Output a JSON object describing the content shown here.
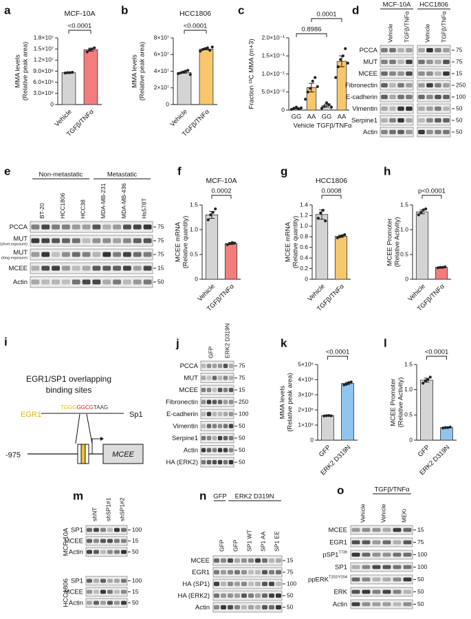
{
  "chart_data": [
    {
      "panel": "a",
      "type": "bar",
      "title": "MCF-10A",
      "ylabel": [
        "MMA levels",
        "(Relative peak area)"
      ],
      "categories": [
        "Vehicle",
        "TGFβ/TNFα"
      ],
      "values": [
        8600000,
        14800000
      ],
      "errors": [
        100000,
        400000
      ],
      "points": [
        [
          8500000,
          8600000,
          8600000,
          8700000
        ],
        [
          14200000,
          14700000,
          15000000,
          15300000
        ]
      ],
      "colors": [
        "#d4d4d4",
        "#f47c7c"
      ],
      "ylim": [
        0,
        18000000
      ],
      "yticks": [
        0,
        {
          "value": 3000000,
          "label": "3.0×10⁶"
        },
        {
          "value": 6000000,
          "label": "6.0×10⁶"
        },
        {
          "value": 9000000,
          "label": "9.0×10⁶"
        },
        {
          "value": 12000000,
          "label": "1.2×10⁷"
        },
        {
          "value": 15000000,
          "label": "1.5×10⁷"
        },
        {
          "value": 18000000,
          "label": "1.8×10⁷"
        }
      ],
      "annotations": [
        "<0.0001"
      ]
    },
    {
      "panel": "b",
      "type": "bar",
      "title": "HCC1806",
      "ylabel": [
        "MMA levels",
        "(Relative peak area)"
      ],
      "categories": [
        "Vehicle",
        "TGFβ/TNFα"
      ],
      "values": [
        38500000,
        66500000
      ],
      "errors": [
        1000000,
        900000
      ],
      "points": [
        [
          37000000,
          38000000,
          39000000,
          40000000,
          41000000,
          36000000
        ],
        [
          64000000,
          66000000,
          67000000,
          68000000,
          65000000,
          69000000
        ]
      ],
      "colors": [
        "#d4d4d4",
        "#f8c66b"
      ],
      "ylim": [
        0,
        80000000
      ],
      "yticks": [
        0,
        {
          "value": 20000000,
          "label": "2×10⁷"
        },
        {
          "value": 40000000,
          "label": "4×10⁷"
        },
        {
          "value": 60000000,
          "label": "6×10⁷"
        },
        {
          "value": 80000000,
          "label": "8×10⁷"
        }
      ],
      "annotations": [
        "<0.0001"
      ]
    },
    {
      "panel": "c",
      "type": "bar",
      "ylabel": [
        "Fraction ¹³C MMA (m+3)"
      ],
      "categories": [
        "GG",
        "AA",
        "GG",
        "AA"
      ],
      "groups": [
        "Vehicle",
        "TGFβ/TNFα"
      ],
      "values": [
        0.005,
        0.062,
        0.012,
        0.135
      ],
      "errors": [
        0.002,
        0.012,
        0.004,
        0.015
      ],
      "points": [
        [
          0.002,
          0.005,
          0.008,
          0.003,
          0.006
        ],
        [
          0.03,
          0.05,
          0.06,
          0.08,
          0.09,
          0.065
        ],
        [
          0.005,
          0.01,
          0.02,
          0.015,
          0.008
        ],
        [
          0.09,
          0.12,
          0.14,
          0.15,
          0.17,
          0.13
        ]
      ],
      "colors": [
        "#d4d4d4",
        "#f8c66b",
        "#d4d4d4",
        "#f8c66b"
      ],
      "ylim": [
        0,
        0.2
      ],
      "yticks": [
        0,
        {
          "value": 0.05,
          "label": "5.0×10⁻²"
        },
        {
          "value": 0.1,
          "label": "1.0×10⁻¹"
        },
        {
          "value": 0.15,
          "label": "1.5×10⁻¹"
        },
        {
          "value": 0.2,
          "label": "2.0×10⁻¹"
        }
      ],
      "annotations": [
        "0.8986",
        "0.0001"
      ]
    },
    {
      "panel": "f",
      "type": "bar",
      "title": "MCF-10A",
      "ylabel": [
        "MCEE mRNA",
        "(Relative quantity)"
      ],
      "categories": [
        "Vehicle",
        "TGFβ/TNFα"
      ],
      "values": [
        1.3,
        0.72
      ],
      "errors": [
        0.07,
        0.02
      ],
      "points": [
        [
          1.2,
          1.3,
          1.35,
          1.42
        ],
        [
          0.7,
          0.72,
          0.74,
          0.73
        ]
      ],
      "colors": [
        "#d4d4d4",
        "#f47c7c"
      ],
      "ylim": [
        0,
        1.5
      ],
      "yticks": [
        0,
        0.5,
        {
          "value": 1,
          "label": "1.0"
        },
        1.5
      ],
      "annotations": [
        "0.0002"
      ]
    },
    {
      "panel": "g",
      "type": "bar",
      "title": "HCC1806",
      "ylabel": [
        "MCEE mRNA",
        "(Relative quantity)"
      ],
      "categories": [
        "Vehicle",
        "TGFβ/TNFα"
      ],
      "values": [
        1.22,
        0.81
      ],
      "errors": [
        0.09,
        0.02
      ],
      "points": [
        [
          1.15,
          1.25,
          1.3,
          1.1
        ],
        [
          0.78,
          0.8,
          0.82,
          0.84
        ]
      ],
      "colors": [
        "#d4d4d4",
        "#f8c66b"
      ],
      "ylim": [
        0,
        1.4
      ],
      "yticks": [
        0,
        0.2,
        0.4,
        0.6,
        0.8,
        {
          "value": 1,
          "label": "1.0"
        },
        1.2,
        1.4
      ],
      "annotations": [
        "0.0008"
      ]
    },
    {
      "panel": "h",
      "type": "bar",
      "ylabel": [
        "MCEE Promoter",
        "(Relative Activity)"
      ],
      "categories": [
        "Vehicle",
        "TGFβ/TNFα"
      ],
      "values": [
        1.36,
        0.24
      ],
      "errors": [
        0.04,
        0.01
      ],
      "points": [
        [
          1.3,
          1.35,
          1.4,
          1.42
        ],
        [
          0.23,
          0.24,
          0.24,
          0.25
        ]
      ],
      "colors": [
        "#d4d4d4",
        "#f47c7c"
      ],
      "ylim": [
        0,
        1.5
      ],
      "yticks": [
        0,
        0.5,
        {
          "value": 1,
          "label": "1.0"
        },
        1.5
      ],
      "annotations": [
        "p<0.0001"
      ]
    },
    {
      "panel": "k",
      "type": "bar",
      "ylabel": [
        "MMA levels",
        "(Relative peak area)"
      ],
      "categories": [
        "GFP",
        "ERK2 D319N"
      ],
      "values": [
        1620000,
        3750000
      ],
      "errors": [
        20000,
        70000
      ],
      "points": [
        [
          1600000,
          1620000,
          1630000,
          1610000
        ],
        [
          3650000,
          3700000,
          3800000,
          3850000
        ]
      ],
      "colors": [
        "#d4d4d4",
        "#8fc4ec"
      ],
      "ylim": [
        0,
        5000000
      ],
      "yticks": [
        0,
        {
          "value": 1000000,
          "label": "1×10⁶"
        },
        {
          "value": 2000000,
          "label": "2×10⁶"
        },
        {
          "value": 3000000,
          "label": "3×10⁶"
        },
        {
          "value": 4000000,
          "label": "4×10⁶"
        },
        {
          "value": 5000000,
          "label": "5×10⁶"
        }
      ],
      "annotations": [
        "<0.0001"
      ]
    },
    {
      "panel": "l",
      "type": "bar",
      "ylabel": [
        "MCEE Promoter",
        "(Relative Activity)"
      ],
      "categories": [
        "GFP",
        "ERK2 D319N"
      ],
      "values": [
        1.19,
        0.25
      ],
      "errors": [
        0.04,
        0.01
      ],
      "points": [
        [
          1.13,
          1.18,
          1.2,
          1.25
        ],
        [
          0.24,
          0.25,
          0.25,
          0.26
        ]
      ],
      "colors": [
        "#d4d4d4",
        "#8fc4ec"
      ],
      "ylim": [
        0,
        1.5
      ],
      "yticks": [
        0,
        0.5,
        {
          "value": 1,
          "label": "1.0"
        },
        1.5
      ],
      "annotations": [
        "<0.0001"
      ]
    }
  ],
  "blots": [
    {
      "panel": "d",
      "blocks": [
        {
          "cell_line": "MCF-10A",
          "lanes": [
            "Vehicle",
            "TGFβ/TNFα"
          ]
        },
        {
          "cell_line": "HCC1806",
          "lanes": [
            "Vehicle",
            "TGFβ/TNFα"
          ]
        }
      ],
      "rows": [
        {
          "label": "PCCA",
          "marker": "75"
        },
        {
          "label": "MUT",
          "marker": "75"
        },
        {
          "label": "MCEE",
          "marker": "15"
        },
        {
          "label": "Fibronectin",
          "marker": "250"
        },
        {
          "label": "E-cadherin",
          "marker": "100"
        },
        {
          "label": "Vimentin",
          "marker": "50"
        },
        {
          "label": "Serpine1",
          "marker": "50"
        },
        {
          "label": "Actin",
          "marker": "50"
        }
      ]
    },
    {
      "panel": "e",
      "groups": [
        "Non-metastatic",
        "Metastatic"
      ],
      "lanes": [
        "BT-20",
        "HCC1806",
        "HCC38",
        "MDA-MB-231",
        "MDA-MB-436",
        "Hs578T"
      ],
      "rows": [
        {
          "label": "PCCA",
          "marker": "75"
        },
        {
          "label": "MUT",
          "note": "(short exposure)",
          "marker": "75"
        },
        {
          "label": "MUT",
          "note": "(long exposure)",
          "marker": "75"
        },
        {
          "label": "MCEE",
          "marker": "15"
        },
        {
          "label": "Actin",
          "marker": "50"
        }
      ]
    },
    {
      "panel": "j",
      "lanes": [
        "GFP",
        "ERK2 D319N"
      ],
      "rows": [
        {
          "label": "PCCA",
          "marker": "75"
        },
        {
          "label": "MUT",
          "marker": "75"
        },
        {
          "label": "MCEE",
          "marker": "15"
        },
        {
          "label": "Fibronectin",
          "marker": "250"
        },
        {
          "label": "E-cadherin",
          "marker": "100"
        },
        {
          "label": "Vimentin",
          "marker": "50"
        },
        {
          "label": "Serpine1",
          "marker": "50"
        },
        {
          "label": "Actin",
          "marker": "50"
        },
        {
          "label": "HA (ERK2)",
          "marker": "50"
        }
      ]
    },
    {
      "panel": "m",
      "lanes": [
        "shNT",
        "shSP1#1",
        "shSP1#2"
      ],
      "blocks": [
        {
          "cell_line": "MCF-10A",
          "rows": [
            {
              "label": "SP1",
              "marker": "100"
            },
            {
              "label": "MCEE",
              "marker": "15"
            },
            {
              "label": "Actin",
              "marker": "50"
            }
          ]
        },
        {
          "cell_line": "HCC1806",
          "rows": [
            {
              "label": "SP1",
              "marker": "100"
            },
            {
              "label": "MCEE",
              "marker": "15"
            },
            {
              "label": "Actin",
              "marker": "50"
            }
          ]
        }
      ]
    },
    {
      "panel": "n",
      "headers": [
        "GFP",
        "ERK2 D319N"
      ],
      "lanes": [
        "GFP",
        "GFP",
        "SP1 WT",
        "SP1 AA",
        "SP1 EE"
      ],
      "rows": [
        {
          "label": "MCEE",
          "marker": "15"
        },
        {
          "label": "EGR1",
          "marker": "75"
        },
        {
          "label": "HA (SP1)",
          "marker": "100"
        },
        {
          "label": "HA (ERK2)",
          "marker": "50"
        },
        {
          "label": "Actin",
          "marker": "50"
        }
      ]
    },
    {
      "panel": "o",
      "header": "TGFβ/TNFα",
      "lanes": [
        "Vehicle",
        "Vehicle",
        "MEKi"
      ],
      "rows": [
        {
          "label": "MCEE",
          "marker": "15"
        },
        {
          "label": "EGR1",
          "marker": "75"
        },
        {
          "label": "pSP1",
          "sup": "T739",
          "marker": "100"
        },
        {
          "label": "SP1",
          "marker": "100"
        },
        {
          "label": "ppERK",
          "sup": "T202/Y204",
          "marker": "50"
        },
        {
          "label": "ERK",
          "marker": "50"
        },
        {
          "label": "Actin",
          "marker": "50"
        }
      ]
    }
  ],
  "diagram": {
    "panel": "i",
    "title": [
      "EGR1/SP1 overlapping",
      "binding sites"
    ],
    "factor1": "EGR1",
    "sequence": [
      "TGGG",
      "GGCG",
      "TAAG"
    ],
    "factor2": "Sp1",
    "position": "-975",
    "gene": "MCEE"
  }
}
